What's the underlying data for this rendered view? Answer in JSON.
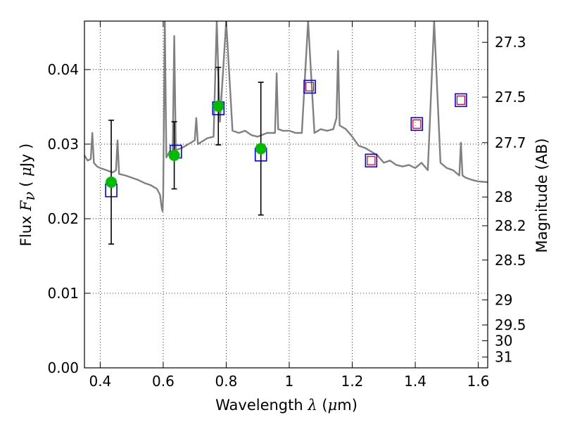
{
  "chart_data": {
    "type": "scatter",
    "title": "",
    "xlabel": {
      "prefix": "Wavelength",
      "symbol": "λ",
      "unit_open": "(",
      "unit_mu": "μ",
      "unit_rest": "m)"
    },
    "ylabel": {
      "prefix": "Flux",
      "symbol": "F",
      "subscript": "ν",
      "unit_open": "(",
      "unit_mu": "μ",
      "unit_rest": "Jy )"
    },
    "y2label": "Magnitude (AB)",
    "xlim": [
      0.35,
      1.63
    ],
    "ylim": [
      0.0,
      0.0465
    ],
    "grid": true,
    "x_ticks": [
      0.4,
      0.6,
      0.8,
      1.0,
      1.2,
      1.4,
      1.6
    ],
    "x_tick_labels": [
      "0.4",
      "0.6",
      "0.8",
      "1",
      "1.2",
      "1.4",
      "1.6"
    ],
    "y_ticks": [
      0.0,
      0.01,
      0.02,
      0.03,
      0.04
    ],
    "y_tick_labels": [
      "0.00",
      "0.01",
      "0.02",
      "0.03",
      "0.04"
    ],
    "y2_ticks": [
      27.3,
      27.5,
      27.7,
      28,
      28.2,
      28.5,
      29,
      29.5,
      30,
      31
    ],
    "y2_tick_labels": [
      "27.3",
      "27.5",
      "27.7",
      "28",
      "28.2",
      "28.5",
      "29",
      "29.5",
      "30",
      "31"
    ],
    "colors": {
      "sed_line": "#808080",
      "observed_points": "#00bb00",
      "model_boxes": "#0000ff",
      "upper_limit_boxes": "#dd0000",
      "error_bars": "#000000",
      "grid": "#000000"
    },
    "series": [
      {
        "type": "line",
        "x": [
          0.35,
          0.36,
          0.37,
          0.375,
          0.38,
          0.39,
          0.4,
          0.42,
          0.44,
          0.45,
          0.455,
          0.46,
          0.48,
          0.5,
          0.52,
          0.54,
          0.56,
          0.58,
          0.59,
          0.595,
          0.598,
          0.6,
          0.605,
          0.61,
          0.62,
          0.63,
          0.635,
          0.64,
          0.66,
          0.68,
          0.7,
          0.705,
          0.71,
          0.74,
          0.76,
          0.77,
          0.78,
          0.8,
          0.82,
          0.84,
          0.86,
          0.88,
          0.9,
          0.93,
          0.955,
          0.96,
          0.965,
          0.98,
          1.0,
          1.02,
          1.04,
          1.06,
          1.08,
          1.1,
          1.12,
          1.14,
          1.15,
          1.155,
          1.16,
          1.18,
          1.2,
          1.22,
          1.24,
          1.26,
          1.28,
          1.3,
          1.32,
          1.34,
          1.36,
          1.38,
          1.4,
          1.42,
          1.44,
          1.46,
          1.48,
          1.5,
          1.52,
          1.54,
          1.545,
          1.55,
          1.56,
          1.58,
          1.6,
          1.63
        ],
        "y": [
          0.0285,
          0.0278,
          0.028,
          0.0315,
          0.0275,
          0.027,
          0.0268,
          0.0265,
          0.0262,
          0.0265,
          0.0305,
          0.026,
          0.0258,
          0.0255,
          0.0252,
          0.0248,
          0.0245,
          0.024,
          0.0232,
          0.0215,
          0.021,
          0.0232,
          0.0465,
          0.0282,
          0.029,
          0.0285,
          0.0445,
          0.0292,
          0.0295,
          0.03,
          0.0305,
          0.0335,
          0.03,
          0.0308,
          0.031,
          0.0465,
          0.033,
          0.0465,
          0.0318,
          0.0315,
          0.0318,
          0.0312,
          0.031,
          0.0315,
          0.0315,
          0.0395,
          0.032,
          0.0318,
          0.0318,
          0.0315,
          0.0315,
          0.0465,
          0.0315,
          0.032,
          0.0318,
          0.032,
          0.0335,
          0.0425,
          0.0325,
          0.032,
          0.031,
          0.0298,
          0.0295,
          0.029,
          0.0285,
          0.0275,
          0.0278,
          0.0272,
          0.027,
          0.0272,
          0.0268,
          0.0275,
          0.0265,
          0.0465,
          0.0275,
          0.0268,
          0.0265,
          0.0258,
          0.0302,
          0.0258,
          0.0255,
          0.0252,
          0.025,
          0.0249
        ]
      },
      {
        "type": "scatter",
        "name": "",
        "x": [
          0.435,
          0.635,
          0.775,
          0.91
        ],
        "y": [
          0.0249,
          0.0285,
          0.0351,
          0.0294
        ],
        "yerr": [
          0.0083,
          0.0045,
          0.0052,
          0.0089
        ]
      },
      {
        "type": "scatter",
        "marker": "square",
        "x": [
          0.435,
          0.64,
          0.775,
          0.91,
          1.065,
          1.26,
          1.405,
          1.545
        ],
        "y": [
          0.0238,
          0.029,
          0.0348,
          0.0286,
          0.0377,
          0.0278,
          0.0327,
          0.0359
        ]
      },
      {
        "type": "scatter",
        "marker": "small-square",
        "x": [
          1.065,
          1.26,
          1.405,
          1.545
        ],
        "y": [
          0.0377,
          0.0278,
          0.0327,
          0.0359
        ]
      }
    ]
  }
}
